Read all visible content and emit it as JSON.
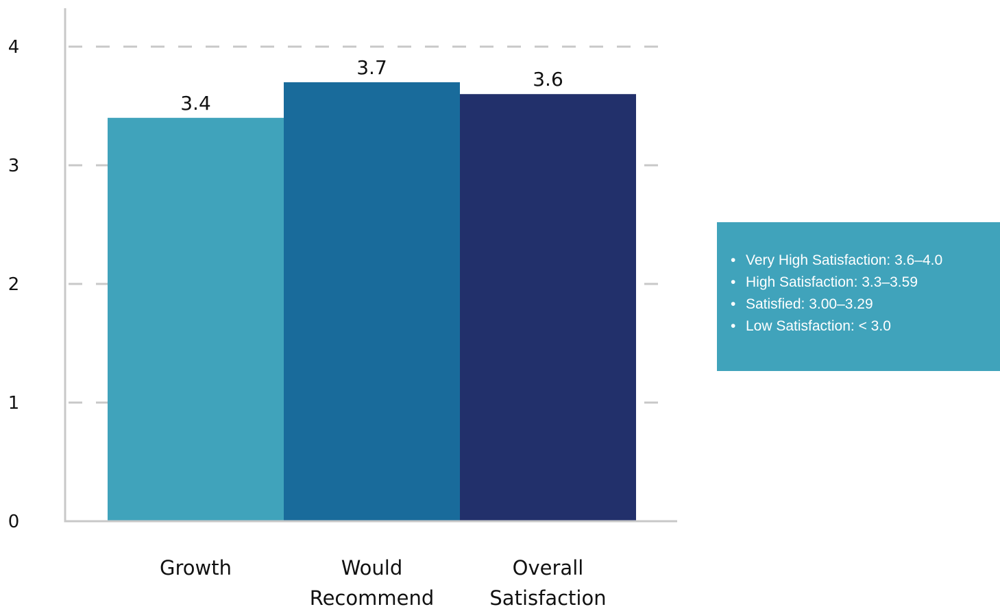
{
  "chart_data": {
    "type": "bar",
    "categories": [
      "Growth",
      "Would Recommend",
      "Overall Satisfaction"
    ],
    "category_lines": [
      [
        "Growth"
      ],
      [
        "Would",
        "Recommend"
      ],
      [
        "Overall",
        "Satisfaction"
      ]
    ],
    "values": [
      3.4,
      3.7,
      3.6
    ],
    "value_labels": [
      "3.4",
      "3.7",
      "3.6"
    ],
    "ylim": [
      0,
      4
    ],
    "yticks": [
      0,
      1,
      2,
      3,
      4
    ],
    "ytick_labels": [
      "0",
      "1",
      "2",
      "3",
      "4"
    ],
    "grid": "dashed-horizontal",
    "title": "",
    "xlabel": "",
    "ylabel": ""
  },
  "colors": {
    "bars": [
      "#40a3bb",
      "#196b9b",
      "#22306b"
    ],
    "axis": "#c8c8c8",
    "grid": "#c8c8c8",
    "legend_bg": "#40a3bb"
  },
  "legend": {
    "items": [
      "Very High Satisfaction: 3.6–4.0",
      "High Satisfaction: 3.3–3.59",
      "Satisfied: 3.00–3.29",
      "Low Satisfaction: < 3.0"
    ]
  }
}
